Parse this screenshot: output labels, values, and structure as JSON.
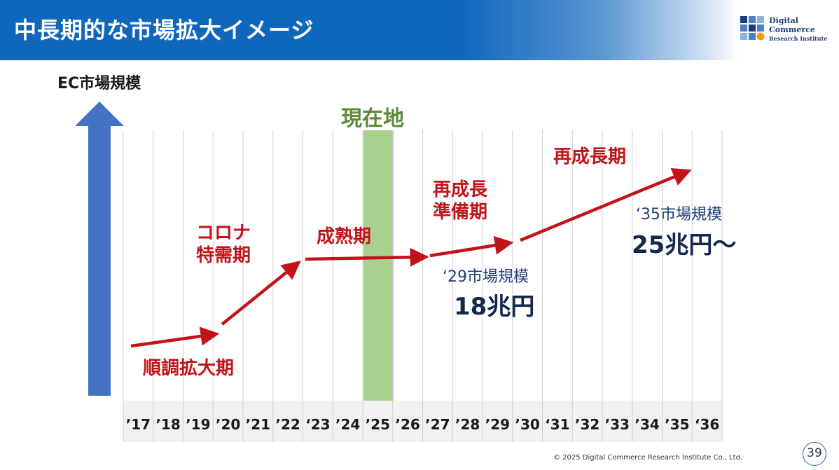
{
  "header": {
    "title": "中長期的な市場拡大イメージ"
  },
  "logo": {
    "line1": "Digital",
    "line2": "Commerce",
    "line3": "Research Institute"
  },
  "y_axis_label": "EC市場規模",
  "current_marker": {
    "label": "現在地",
    "year": "’25"
  },
  "phases": [
    {
      "lines": [
        "順調拡大期"
      ]
    },
    {
      "lines": [
        "コロナ",
        "特需期"
      ]
    },
    {
      "lines": [
        "成熟期"
      ]
    },
    {
      "lines": [
        "再成長",
        "準備期"
      ]
    },
    {
      "lines": [
        "再成長期"
      ]
    }
  ],
  "projections": [
    {
      "label": "‘29市場規模",
      "value": "18兆円"
    },
    {
      "label": "‘35市場規模",
      "value": "25兆円～"
    }
  ],
  "footer": {
    "copyright": "© 2025 Digital Commerce Research Institute Co., Ltd.",
    "page": "39"
  },
  "colors": {
    "header_blue": "#0f67bd",
    "arrow_red": "#c2131a",
    "axis_arrow_blue": "#4472c4",
    "current_green": "#a9d18e",
    "current_label_green": "#5d8a3a",
    "projection_navy": "#13284f"
  },
  "chart_data": {
    "type": "timeline",
    "categories": [
      "’17",
      "’18",
      "’19",
      "’20",
      "’21",
      "’22",
      "‘23",
      "’24",
      "’25",
      "’26",
      "’27",
      "’28",
      "’29",
      "’30",
      "‘31",
      "’32",
      "’33",
      "’34",
      "’35",
      "‘36"
    ],
    "highlight_category": "’25",
    "ylabel": "EC市場規模",
    "legend": "none",
    "grid": true
  }
}
